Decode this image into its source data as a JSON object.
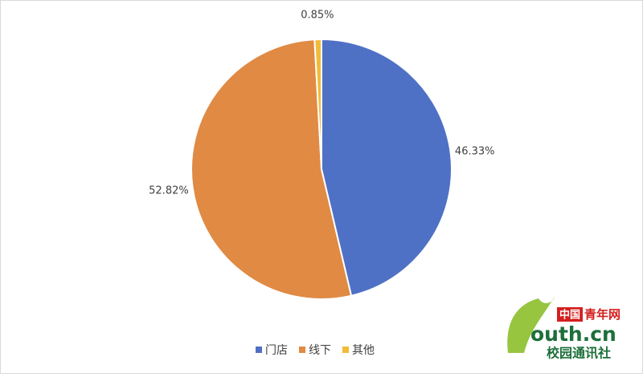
{
  "chart_data": {
    "type": "pie",
    "categories": [
      "门店",
      "线下",
      "其他"
    ],
    "values": [
      46.33,
      52.82,
      0.85
    ],
    "value_labels": [
      "46.33%",
      "52.82%",
      "0.85%"
    ],
    "colors": [
      "#4f71c5",
      "#e08a44",
      "#f2bb3a"
    ],
    "legend": "bottom"
  },
  "watermark": {
    "brand": "中国",
    "brand_rest": "青年网",
    "domain": "outh.cn",
    "unit": "校园通讯社"
  }
}
